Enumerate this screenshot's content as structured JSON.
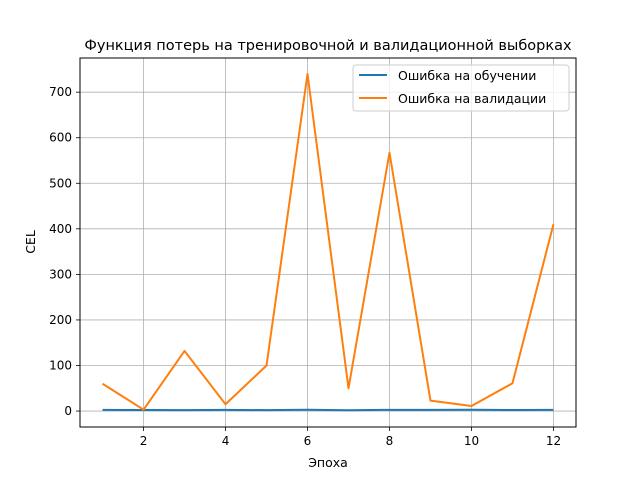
{
  "chart_data": {
    "type": "line",
    "title": "Функция потерь на тренировочной и валидационной выборках",
    "xlabel": "Эпоха",
    "ylabel": "CEL",
    "x": [
      1,
      2,
      3,
      4,
      5,
      6,
      7,
      8,
      9,
      10,
      11,
      12
    ],
    "xlim": [
      0.45,
      12.55
    ],
    "ylim": [
      -35,
      775
    ],
    "xticks": [
      2,
      4,
      6,
      8,
      10,
      12
    ],
    "yticks": [
      0,
      100,
      200,
      300,
      400,
      500,
      600,
      700
    ],
    "grid": true,
    "legend_position": "top-right",
    "series": [
      {
        "name": "Ошибка на обучении",
        "color": "#1f77b4",
        "values": [
          2.5,
          2.4,
          2.1,
          2.6,
          2.0,
          2.8,
          1.9,
          2.7,
          2.6,
          2.9,
          2.3,
          2.5
        ]
      },
      {
        "name": "Ошибка на валидации",
        "color": "#ff7f0e",
        "values": [
          60,
          3,
          132,
          15,
          100,
          740,
          50,
          567,
          23,
          11,
          61,
          410
        ]
      }
    ]
  }
}
